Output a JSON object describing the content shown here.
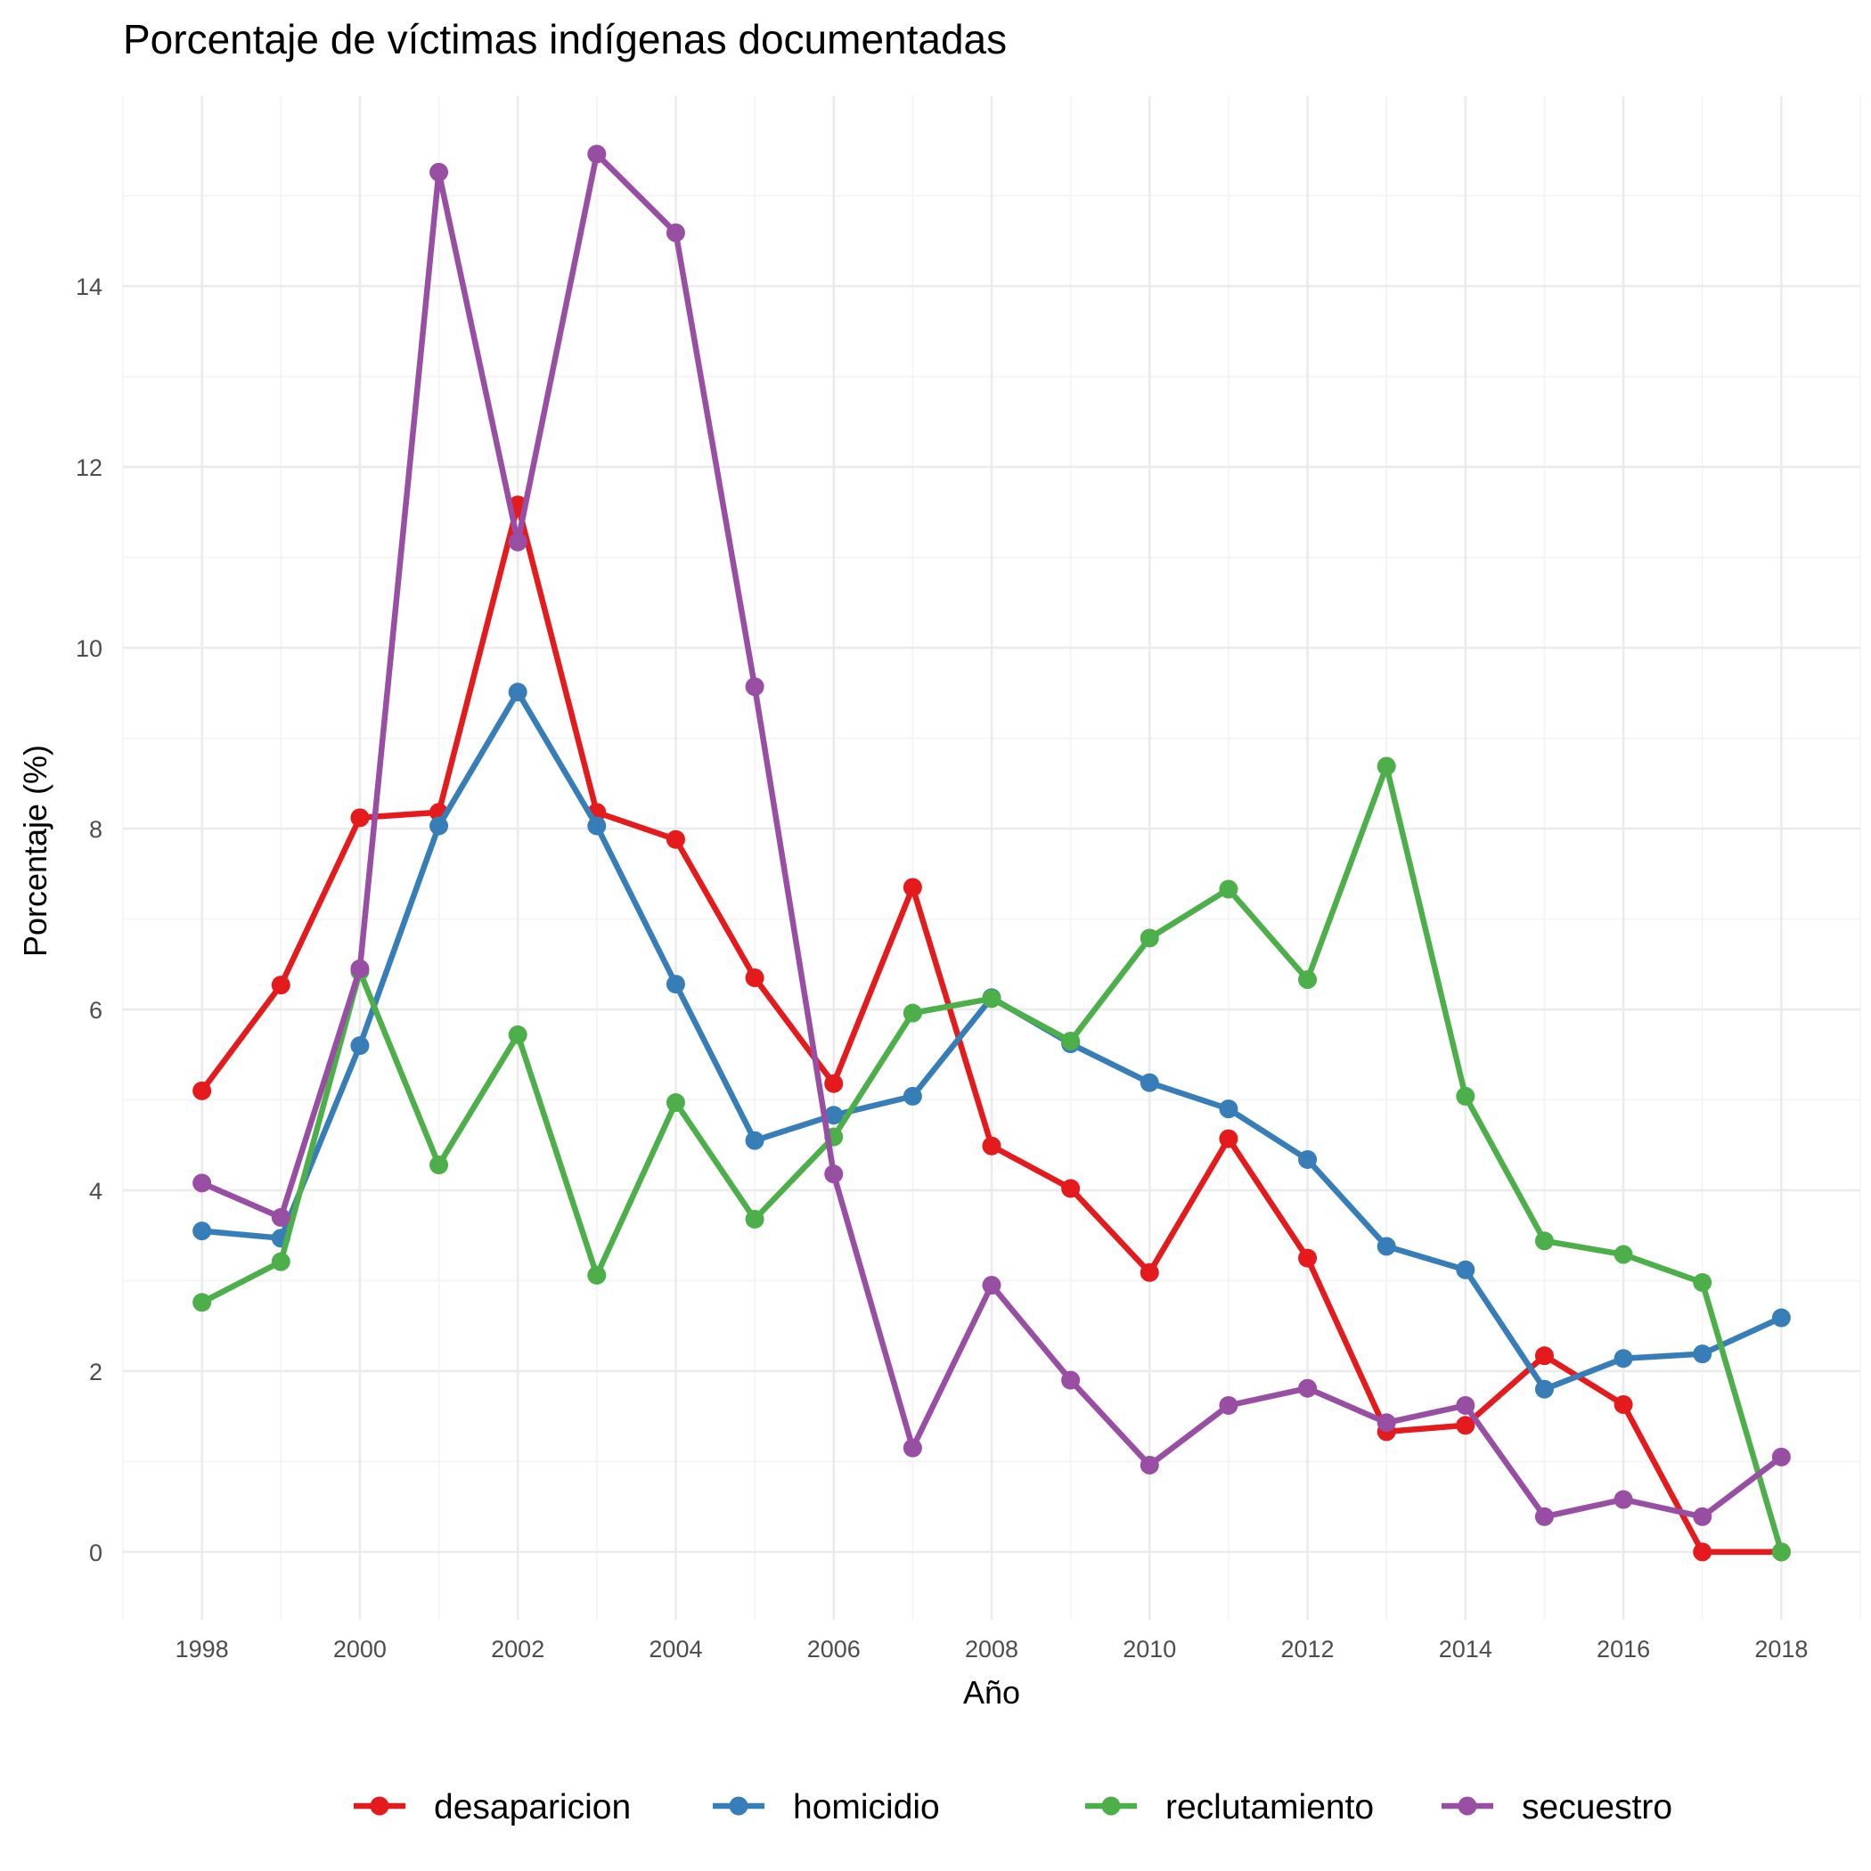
{
  "chart_data": {
    "type": "line",
    "title": "Porcentaje de víctimas indígenas documentadas",
    "xlabel": "Año",
    "ylabel": "Porcentaje (%)",
    "xlim": [
      1997,
      2019
    ],
    "ylim": [
      -0.75,
      16.1
    ],
    "x_ticks": [
      1998,
      2000,
      2002,
      2004,
      2006,
      2008,
      2010,
      2012,
      2014,
      2016,
      2018
    ],
    "y_ticks": [
      0,
      2,
      4,
      6,
      8,
      10,
      12,
      14
    ],
    "grid": true,
    "legend_position": "bottom",
    "x": [
      1998,
      1999,
      2000,
      2001,
      2002,
      2003,
      2004,
      2005,
      2006,
      2007,
      2008,
      2009,
      2010,
      2011,
      2012,
      2013,
      2014,
      2015,
      2016,
      2017,
      2018
    ],
    "series": [
      {
        "name": "desaparicion",
        "color": "#e41a1c",
        "values": [
          5.1,
          6.27,
          8.12,
          8.18,
          11.58,
          8.18,
          7.88,
          6.35,
          5.18,
          7.35,
          4.49,
          4.02,
          3.09,
          4.57,
          3.25,
          1.33,
          1.4,
          2.17,
          1.63,
          0.0,
          0.0
        ]
      },
      {
        "name": "homicidio",
        "color": "#377eb8",
        "values": [
          3.55,
          3.47,
          5.6,
          8.03,
          9.51,
          8.03,
          6.28,
          4.55,
          4.83,
          5.04,
          6.13,
          5.62,
          5.19,
          4.9,
          4.34,
          3.38,
          3.12,
          1.8,
          2.14,
          2.19,
          2.59
        ]
      },
      {
        "name": "reclutamiento",
        "color": "#4daf4a",
        "values": [
          2.76,
          3.21,
          6.42,
          4.28,
          5.72,
          3.06,
          4.97,
          3.68,
          4.59,
          5.96,
          6.12,
          5.65,
          6.79,
          7.33,
          6.33,
          8.69,
          5.04,
          3.44,
          3.29,
          2.98,
          0.0
        ]
      },
      {
        "name": "secuestro",
        "color": "#984ea3",
        "values": [
          4.08,
          3.7,
          6.45,
          15.26,
          11.17,
          15.46,
          14.59,
          9.57,
          4.18,
          1.15,
          2.95,
          1.9,
          0.96,
          1.62,
          1.81,
          1.43,
          1.62,
          0.39,
          0.58,
          0.39,
          1.05
        ]
      }
    ]
  }
}
